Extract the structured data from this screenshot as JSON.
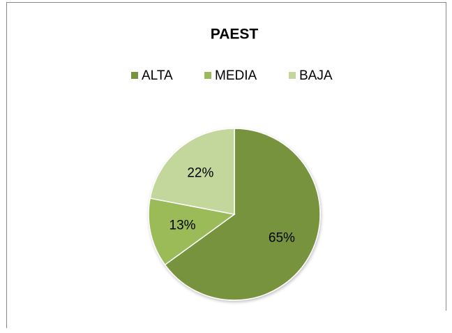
{
  "chart_data": {
    "type": "pie",
    "title": "PAEST",
    "categories": [
      "ALTA",
      "MEDIA",
      "BAJA"
    ],
    "values": [
      65,
      13,
      22
    ],
    "value_labels": [
      "65%",
      "13%",
      "22%"
    ],
    "colors": [
      "#77933c",
      "#9bbb59",
      "#c3d69b"
    ],
    "legend": "top"
  }
}
